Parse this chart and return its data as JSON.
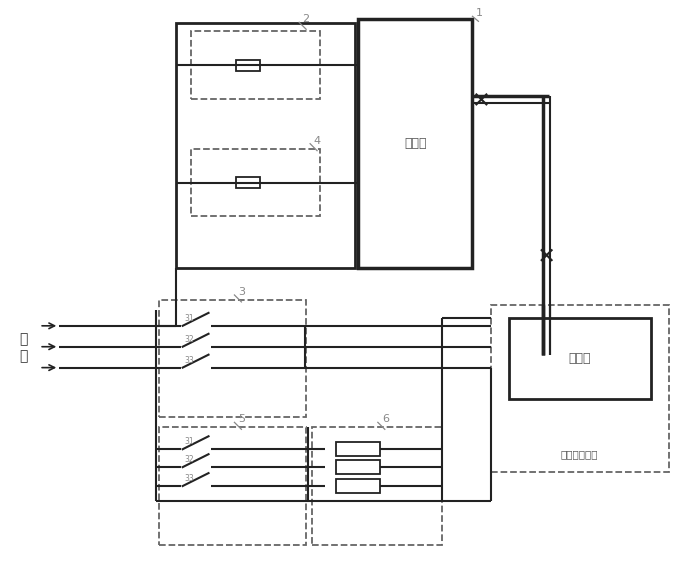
{
  "bg": "#ffffff",
  "lc": "#222222",
  "dc": "#666666",
  "tc": "#888888",
  "fw": 6.77,
  "fh": 5.76,
  "text_controller": "控制器",
  "text_rectifier": "整流器",
  "text_outer": "外围相关设备",
  "text_power": "电\n源",
  "labels": [
    "1",
    "2",
    "3",
    "4",
    "5",
    "6"
  ],
  "sub_labels_3": [
    "31",
    "32",
    "33"
  ],
  "sub_labels_5": [
    "31",
    "32",
    "33"
  ]
}
